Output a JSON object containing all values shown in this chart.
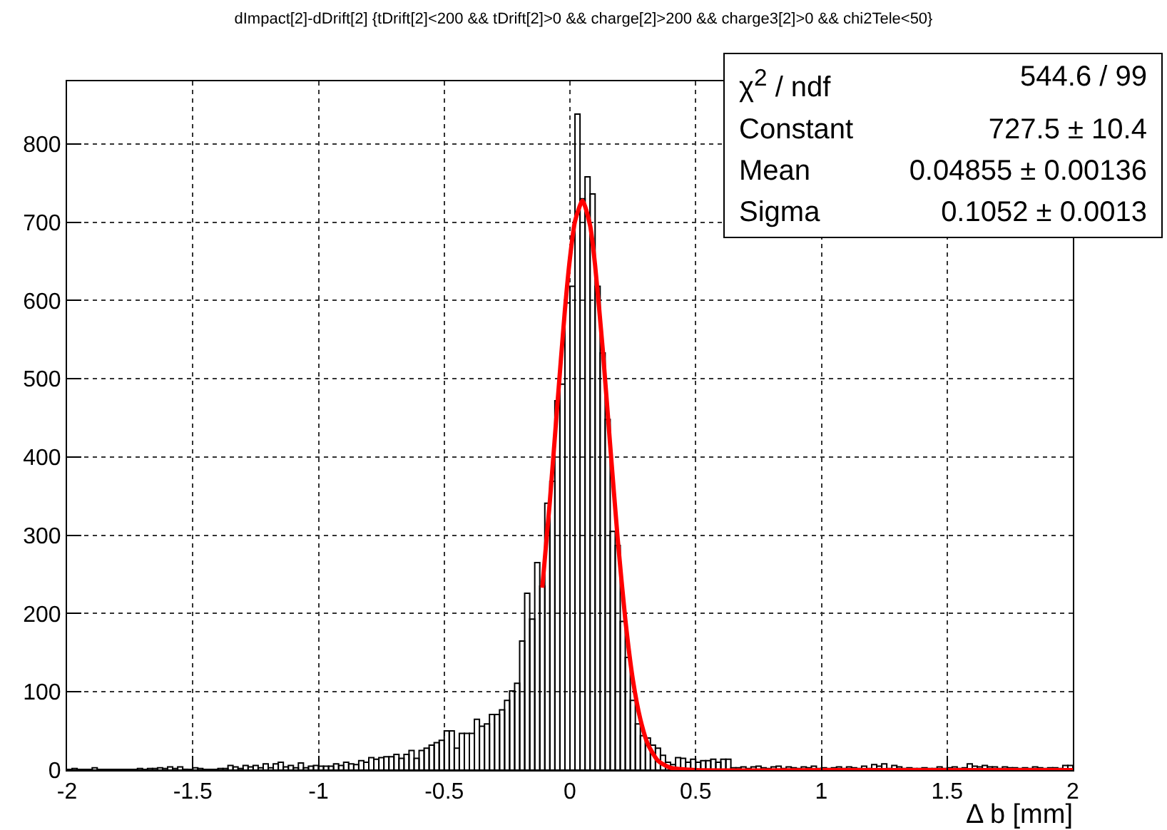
{
  "chart_data": {
    "type": "histogram",
    "title": "dImpact[2]-dDrift[2] {tDrift[2]<200 && tDrift[2]>0 && charge[2]>200 && charge3[2]>0 && chi2Tele<50}",
    "xlabel": "Δ b [mm]",
    "bins": [
      -2,
      -1.98,
      -1.96,
      -1.94,
      -1.92,
      -1.9,
      -1.88,
      -1.86,
      -1.84,
      -1.82,
      -1.8,
      -1.78,
      -1.76,
      -1.74,
      -1.72,
      -1.7,
      -1.68,
      -1.66,
      -1.64,
      -1.62,
      -1.6,
      -1.58,
      -1.56,
      -1.54,
      -1.52,
      -1.5,
      -1.48,
      -1.46,
      -1.44,
      -1.42,
      -1.4,
      -1.38,
      -1.36,
      -1.34,
      -1.32,
      -1.3,
      -1.28,
      -1.26,
      -1.24,
      -1.22,
      -1.2,
      -1.18,
      -1.16,
      -1.14,
      -1.12,
      -1.1,
      -1.08,
      -1.06,
      -1.04,
      -1.02,
      -1,
      -0.98,
      -0.96,
      -0.94,
      -0.92,
      -0.9,
      -0.88,
      -0.86,
      -0.84,
      -0.82,
      -0.8,
      -0.78,
      -0.76,
      -0.74,
      -0.72,
      -0.7,
      -0.68,
      -0.66,
      -0.64,
      -0.62,
      -0.6,
      -0.58,
      -0.56,
      -0.54,
      -0.52,
      -0.5,
      -0.48,
      -0.46,
      -0.44,
      -0.42,
      -0.4,
      -0.38,
      -0.36,
      -0.34,
      -0.32,
      -0.3,
      -0.28,
      -0.26,
      -0.24,
      -0.22,
      -0.2,
      -0.18,
      -0.16,
      -0.14,
      -0.12,
      -0.1,
      -0.08,
      -0.06,
      -0.04,
      -0.02,
      0,
      0.02,
      0.04,
      0.06,
      0.08,
      0.1,
      0.12,
      0.14,
      0.16,
      0.18,
      0.2,
      0.22,
      0.24,
      0.26,
      0.28,
      0.3,
      0.32,
      0.34,
      0.36,
      0.38,
      0.4,
      0.42,
      0.44,
      0.46,
      0.48,
      0.5,
      0.52,
      0.54,
      0.56,
      0.58,
      0.6,
      0.62,
      0.64,
      0.66,
      0.68,
      0.7,
      0.72,
      0.74,
      0.76,
      0.78,
      0.8,
      0.82,
      0.84,
      0.86,
      0.88,
      0.9,
      0.92,
      0.94,
      0.96,
      0.98,
      1,
      1.02,
      1.04,
      1.06,
      1.08,
      1.1,
      1.12,
      1.14,
      1.16,
      1.18,
      1.2,
      1.22,
      1.24,
      1.26,
      1.28,
      1.3,
      1.32,
      1.34,
      1.36,
      1.38,
      1.4,
      1.42,
      1.44,
      1.46,
      1.48,
      1.5,
      1.52,
      1.54,
      1.56,
      1.58,
      1.6,
      1.62,
      1.64,
      1.66,
      1.68,
      1.7,
      1.72,
      1.74,
      1.76,
      1.78,
      1.8,
      1.82,
      1.84,
      1.86,
      1.88,
      1.9,
      1.92,
      1.94,
      1.96,
      1.98,
      2
    ],
    "values": [
      0,
      2,
      0,
      0,
      0,
      3,
      0,
      0,
      0,
      0,
      0,
      0,
      0,
      0,
      2,
      0,
      2,
      2,
      3,
      2,
      4,
      2,
      4,
      1,
      0,
      3,
      2,
      0,
      0,
      0,
      2,
      2,
      6,
      4,
      2,
      6,
      4,
      6,
      3,
      8,
      3,
      8,
      10,
      4,
      6,
      3,
      9,
      3,
      5,
      6,
      5,
      5,
      5,
      8,
      6,
      10,
      8,
      7,
      12,
      10,
      16,
      14,
      16,
      17,
      17,
      20,
      15,
      20,
      25,
      15,
      25,
      28,
      32,
      35,
      38,
      50,
      50,
      28,
      47,
      47,
      47,
      65,
      56,
      59,
      71,
      71,
      77,
      89,
      101,
      111,
      165,
      226,
      193,
      265,
      235,
      341,
      369,
      472,
      493,
      597,
      618,
      838,
      730,
      758,
      736,
      618,
      533,
      448,
      305,
      287,
      190,
      144,
      89,
      59,
      44,
      41,
      32,
      28,
      19,
      10,
      7,
      16,
      15,
      10,
      14,
      10,
      12,
      12,
      14,
      10,
      14,
      14,
      3,
      3,
      4,
      2,
      4,
      5,
      3,
      2,
      4,
      5,
      2,
      4,
      3,
      2,
      4,
      3,
      5,
      2,
      3,
      2,
      3,
      4,
      2,
      4,
      3,
      2,
      5,
      2,
      7,
      5,
      8,
      2,
      6,
      4,
      2,
      3,
      2,
      2,
      3,
      2,
      2,
      4,
      2,
      3,
      4,
      2,
      3,
      8,
      5,
      4,
      6,
      4,
      4,
      2,
      4,
      3,
      3,
      2,
      3,
      2,
      4,
      3,
      2,
      3,
      3,
      2,
      6,
      6
    ],
    "color": "#000000",
    "series": [
      {
        "type": "line",
        "color": "#ff0000",
        "x": [
          -0.11,
          -0.08,
          -0.05,
          -0.02,
          0,
          0.02,
          0.05,
          0.08,
          0.1,
          0.13,
          0.16,
          0.19,
          0.22,
          0.25,
          0.28,
          0.31,
          0.35,
          0.4,
          0.5,
          1,
          2
        ],
        "values": [
          233,
          343,
          467,
          588,
          654,
          701,
          727.5,
          696,
          645,
          539,
          415,
          295,
          193,
          116,
          65,
          33,
          12,
          3,
          0,
          0,
          0
        ]
      }
    ],
    "xlim": [
      -2,
      2
    ],
    "ylim": [
      0,
      880
    ],
    "xticks": [
      -2,
      -1.5,
      -1,
      -0.5,
      0,
      0.5,
      1,
      1.5,
      2
    ],
    "yticks": [
      0,
      100,
      200,
      300,
      400,
      500,
      600,
      700,
      800
    ],
    "grid": true,
    "annotations": [
      "χ$^{2}$ / ndf",
      "544.6 / 99",
      "Constant",
      "727.5 ± 10.4",
      "Mean",
      "0.04855 ± 0.00136",
      "Sigma",
      "0.1052 ± 0.0013"
    ]
  }
}
